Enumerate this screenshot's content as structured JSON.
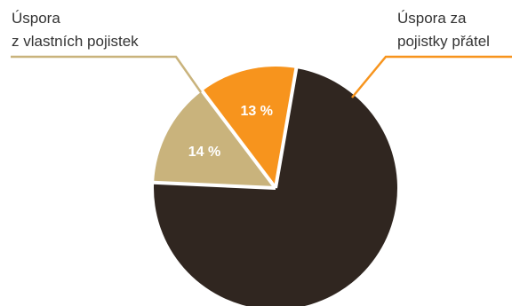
{
  "chart_data": {
    "type": "pie",
    "start_angle_deg": -37,
    "slices": [
      {
        "label": "Úspora za pojistky přátel",
        "value": 13,
        "value_label": "13 %",
        "color": "#f7941d"
      },
      {
        "label": "",
        "value": 73,
        "value_label": "",
        "color": "#302620"
      },
      {
        "label": "Úspora z vlastních pojistek",
        "value": 14,
        "value_label": "14 %",
        "color": "#c9b37c"
      }
    ],
    "slice_separator_color": "#ffffff",
    "callouts": [
      {
        "lines": [
          "Úspora",
          "z vlastních pojistek"
        ],
        "line_color": "#c9b37c",
        "side": "left"
      },
      {
        "lines": [
          "Úspora za",
          "pojistky přátel"
        ],
        "line_color": "#f7941d",
        "side": "right"
      }
    ]
  }
}
